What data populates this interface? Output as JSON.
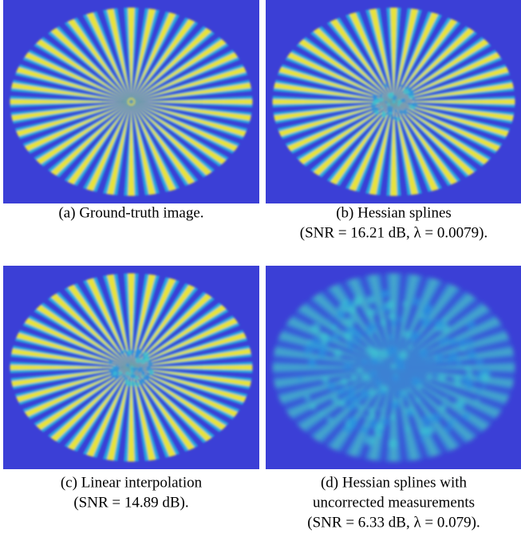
{
  "panels": [
    {
      "caption": [
        "(a) Ground-truth image."
      ]
    },
    {
      "caption": [
        "(b) Hessian splines",
        "(SNR = 16.21 dB, λ = 0.0079)."
      ]
    },
    {
      "caption": [
        "(c) Linear interpolation",
        "(SNR = 14.89 dB)."
      ]
    },
    {
      "caption": [
        "(d) Hessian splines with",
        "uncorrected measurements",
        "(SNR = 6.33 dB, λ = 0.079)."
      ]
    }
  ]
}
